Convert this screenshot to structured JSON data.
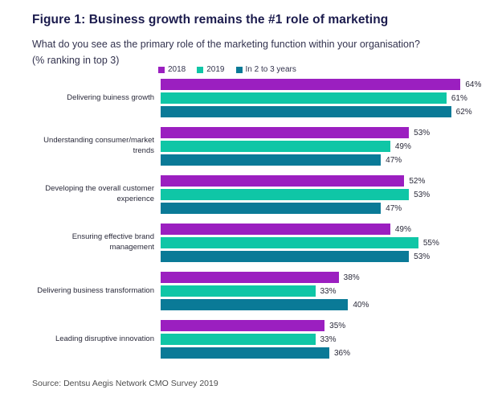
{
  "title": "Figure 1: Business growth remains the #1 role of marketing",
  "subtitle_line1": "What do you see as the primary role of the marketing function within your organisation?",
  "subtitle_line2": "(% ranking in top 3)",
  "source": "Source: Dentsu Aegis Network CMO Survey 2019",
  "colors": {
    "title": "#1b1b4d",
    "series_2018": "#9b1fc0",
    "series_2019": "#0fc6a6",
    "series_future": "#0a7a97"
  },
  "chart_data": {
    "type": "bar",
    "orientation": "horizontal",
    "title": "Figure 1: Business growth remains the #1 role of marketing",
    "subtitle": "What do you see as the primary role of the marketing function within your organisation? (% ranking in top 3)",
    "categories": [
      "Delivering buiness growth",
      "Understanding consumer/market trends",
      "Developing the overall customer experience",
      "Ensuring effective brand management",
      "Delivering business transformation",
      "Leading disruptive innovation"
    ],
    "series": [
      {
        "name": "2018",
        "color": "#9b1fc0",
        "values": [
          64,
          53,
          52,
          49,
          38,
          35
        ]
      },
      {
        "name": "2019",
        "color": "#0fc6a6",
        "values": [
          61,
          49,
          53,
          55,
          33,
          33
        ]
      },
      {
        "name": "In 2 to 3 years",
        "color": "#0a7a97",
        "values": [
          62,
          47,
          47,
          53,
          40,
          36
        ]
      }
    ],
    "value_suffix": "%",
    "xlim": [
      0,
      66
    ],
    "grid": false,
    "legend_position": "top-center",
    "value_labels": "outside-end"
  }
}
